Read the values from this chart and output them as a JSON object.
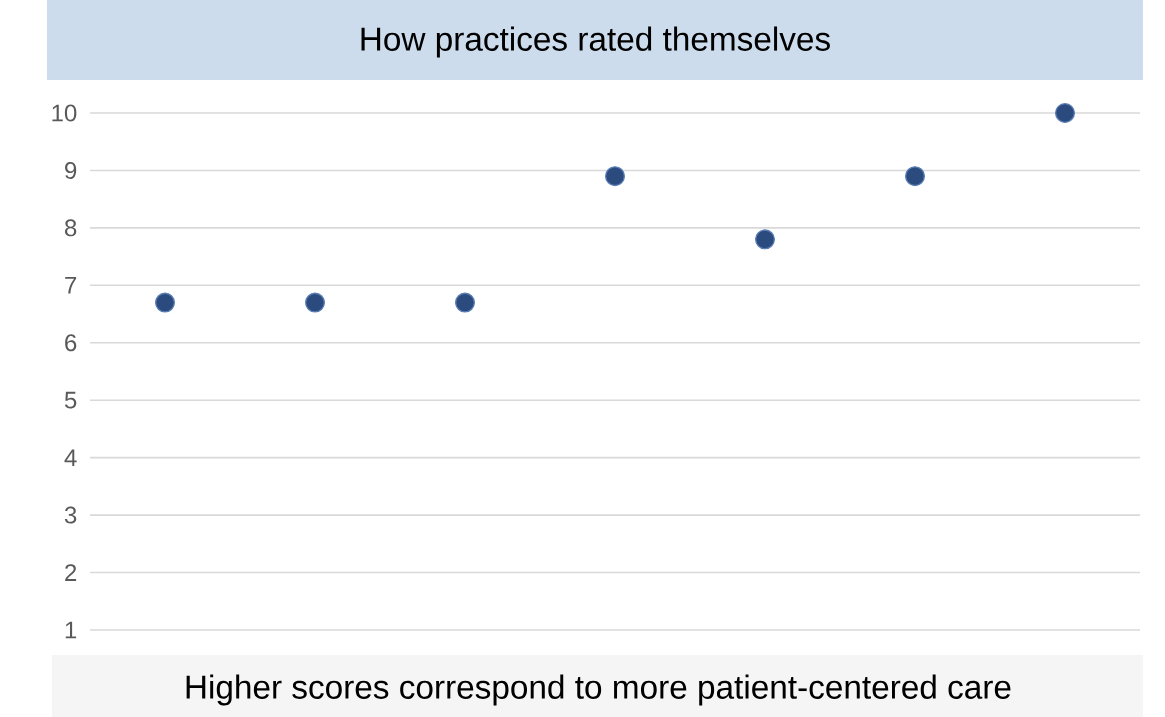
{
  "chart_data": {
    "type": "scatter",
    "title": "How practices rated themselves",
    "annotations": [
      "Higher scores correspond to more patient-centered care"
    ],
    "categories": [
      null,
      null,
      null,
      null,
      null,
      null,
      null
    ],
    "values": [
      6.7,
      6.7,
      6.7,
      8.9,
      7.8,
      8.9,
      10
    ],
    "color": "#2b4a7e",
    "marker": "circle",
    "grid": "y",
    "ylim": [
      1,
      10
    ],
    "yticks": [
      1,
      2,
      3,
      4,
      5,
      6,
      7,
      8,
      9,
      10
    ],
    "tick_labels": "y"
  }
}
